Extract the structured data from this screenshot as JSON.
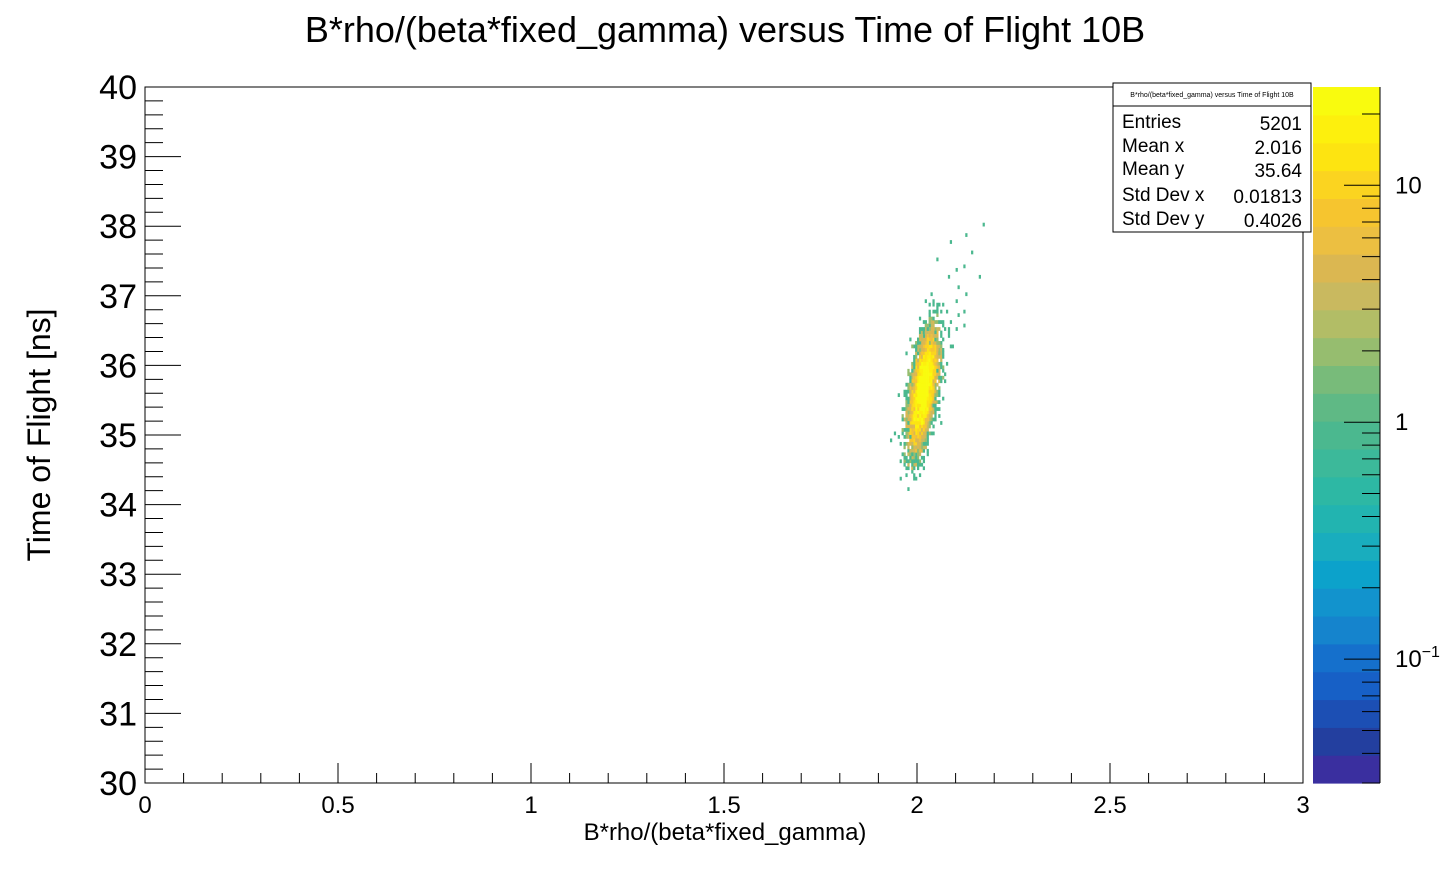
{
  "chart_data": {
    "type": "heatmap",
    "title": "B*rho/(beta*fixed_gamma) versus Time of Flight 10B",
    "xlabel": "B*rho/(beta*fixed_gamma)",
    "ylabel": "Time of Flight [ns]",
    "xlim": [
      0,
      3
    ],
    "ylim": [
      30,
      40
    ],
    "x_ticks": [
      "0",
      "0.5",
      "1",
      "1.5",
      "2",
      "2.5",
      "3"
    ],
    "y_ticks": [
      "30",
      "31",
      "32",
      "33",
      "34",
      "35",
      "36",
      "37",
      "38",
      "39",
      "40"
    ],
    "z_scale": "log",
    "z_ticks": [
      {
        "base": "10",
        "exp": "−1",
        "value": 0.1
      },
      {
        "base": "1",
        "exp": "",
        "value": 1
      },
      {
        "base": "10",
        "exp": "",
        "value": 10
      }
    ],
    "z_range": [
      0.03,
      26
    ],
    "stats": {
      "title": "B*rho/(beta*fixed_gamma) versus Time of Flight 10B",
      "rows": [
        {
          "label": "Entries",
          "value": "5201"
        },
        {
          "label": "Mean x",
          "value": "2.016"
        },
        {
          "label": "Mean y",
          "value": "35.64"
        },
        {
          "label": "Std Dev x",
          "value": "0.01813"
        },
        {
          "label": "Std Dev y",
          "value": "0.4026"
        }
      ]
    },
    "distribution": {
      "entries": 5201,
      "mean_x": 2.016,
      "mean_y": 35.64,
      "std_x": 0.01813,
      "std_y": 0.4026,
      "correlation": 0.55,
      "x_bin_width": 0.005,
      "y_bin_width": 0.05
    },
    "sparse_points": [
      [
        2.17,
        38.05
      ],
      [
        2.13,
        37.85
      ],
      [
        2.09,
        37.78
      ],
      [
        2.14,
        37.6
      ],
      [
        2.12,
        37.42
      ],
      [
        2.1,
        37.35
      ],
      [
        2.16,
        37.28
      ],
      [
        2.08,
        37.25
      ],
      [
        2.11,
        37.1
      ],
      [
        2.13,
        37.0
      ],
      [
        2.1,
        36.92
      ],
      [
        2.07,
        36.85
      ],
      [
        2.12,
        36.8
      ],
      [
        2.11,
        36.72
      ],
      [
        2.09,
        36.65
      ],
      [
        2.12,
        36.58
      ],
      [
        2.1,
        36.5
      ],
      [
        2.08,
        36.42
      ],
      [
        2.09,
        36.3
      ],
      [
        1.94,
        35.0
      ],
      [
        1.95,
        34.95
      ],
      [
        1.93,
        34.92
      ]
    ],
    "colors": {
      "palette": [
        "#3a2f9f",
        "#233f9f",
        "#1c4fb4",
        "#1760c6",
        "#1570cc",
        "#1584cd",
        "#1293cd",
        "#0ca2cb",
        "#19adbe",
        "#22b4b0",
        "#2db8a4",
        "#3cb99a",
        "#4bb88f",
        "#5fb985",
        "#78bb7a",
        "#96bd6f",
        "#b2bd66",
        "#c9b95f",
        "#dbb751",
        "#ecbf41",
        "#f6c52f",
        "#fbd420",
        "#fde411",
        "#fdf00d",
        "#f9fb0e"
      ]
    }
  }
}
